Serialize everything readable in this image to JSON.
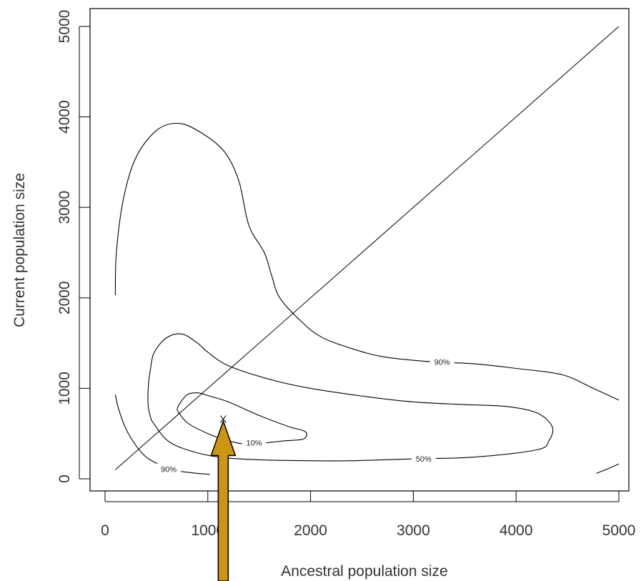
{
  "chart_data": {
    "type": "contour",
    "title": "",
    "xlabel": "Ancestral population size",
    "ylabel": "Current population size",
    "xlim": [
      -100,
      5200
    ],
    "ylim": [
      -120,
      5200
    ],
    "x_ticks": [
      0,
      1000,
      2000,
      3000,
      4000,
      5000
    ],
    "y_ticks": [
      0,
      1000,
      2000,
      3000,
      4000,
      5000
    ],
    "x_tick_labels": [
      "0",
      "1000",
      "2000",
      "3000",
      "4000",
      "5000"
    ],
    "y_tick_labels": [
      "0",
      "1000",
      "2000",
      "3000",
      "4000",
      "5000"
    ],
    "grid": false,
    "reference_line": {
      "x": [
        100,
        5000
      ],
      "y": [
        100,
        5000
      ]
    },
    "contours": [
      {
        "label": "10%",
        "label_at": [
          1450,
          400
        ],
        "points": [
          [
            700,
            760
          ],
          [
            720,
            820
          ],
          [
            800,
            930
          ],
          [
            900,
            950
          ],
          [
            1000,
            920
          ],
          [
            1200,
            850
          ],
          [
            1500,
            700
          ],
          [
            1780,
            580
          ],
          [
            1950,
            520
          ],
          [
            1930,
            440
          ],
          [
            1750,
            420
          ],
          [
            1580,
            400
          ],
          [
            1400,
            380
          ],
          [
            1200,
            420
          ],
          [
            1000,
            500
          ],
          [
            800,
            620
          ],
          [
            700,
            760
          ]
        ]
      },
      {
        "label": "50%",
        "label_at": [
          3100,
          220
        ],
        "points": [
          [
            450,
            650
          ],
          [
            420,
            800
          ],
          [
            420,
            1000
          ],
          [
            440,
            1200
          ],
          [
            480,
            1400
          ],
          [
            600,
            1560
          ],
          [
            750,
            1600
          ],
          [
            900,
            1500
          ],
          [
            1000,
            1400
          ],
          [
            1200,
            1250
          ],
          [
            1600,
            1100
          ],
          [
            2000,
            1000
          ],
          [
            2600,
            900
          ],
          [
            3000,
            850
          ],
          [
            3500,
            820
          ],
          [
            3900,
            800
          ],
          [
            4200,
            730
          ],
          [
            4350,
            580
          ],
          [
            4320,
            420
          ],
          [
            4200,
            320
          ],
          [
            3600,
            240
          ],
          [
            3000,
            220
          ],
          [
            2400,
            200
          ],
          [
            2000,
            200
          ],
          [
            1500,
            210
          ],
          [
            1100,
            240
          ],
          [
            800,
            320
          ],
          [
            600,
            430
          ],
          [
            450,
            650
          ]
        ]
      },
      {
        "label": "90%",
        "label_at": [
          3280,
          1290
        ],
        "points": [
          [
            100,
            2030
          ],
          [
            110,
            2500
          ],
          [
            180,
            3100
          ],
          [
            300,
            3550
          ],
          [
            500,
            3850
          ],
          [
            700,
            3930
          ],
          [
            900,
            3850
          ],
          [
            1150,
            3630
          ],
          [
            1300,
            3300
          ],
          [
            1400,
            2800
          ],
          [
            1550,
            2500
          ],
          [
            1620,
            2250
          ],
          [
            1700,
            2000
          ],
          [
            1900,
            1750
          ],
          [
            2100,
            1570
          ],
          [
            2400,
            1440
          ],
          [
            2700,
            1350
          ],
          [
            3100,
            1300
          ],
          [
            3600,
            1270
          ],
          [
            4000,
            1220
          ],
          [
            4450,
            1150
          ],
          [
            4750,
            1000
          ],
          [
            5000,
            870
          ]
        ]
      },
      {
        "label": "90%",
        "label_at": [
          620,
          105
        ],
        "points": [
          [
            100,
            930
          ],
          [
            130,
            780
          ],
          [
            200,
            560
          ],
          [
            300,
            370
          ],
          [
            400,
            240
          ],
          [
            520,
            160
          ],
          [
            620,
            110
          ],
          [
            750,
            80
          ],
          [
            900,
            60
          ],
          [
            1020,
            50
          ]
        ]
      },
      {
        "label": "",
        "label_at": null,
        "points": [
          [
            4780,
            60
          ],
          [
            4890,
            110
          ],
          [
            5000,
            165
          ]
        ]
      }
    ],
    "marker": {
      "symbol": "x",
      "x": 1150,
      "y": 660
    },
    "arrow": {
      "color": "#CC9514",
      "points_to": [
        1150,
        660
      ]
    }
  }
}
